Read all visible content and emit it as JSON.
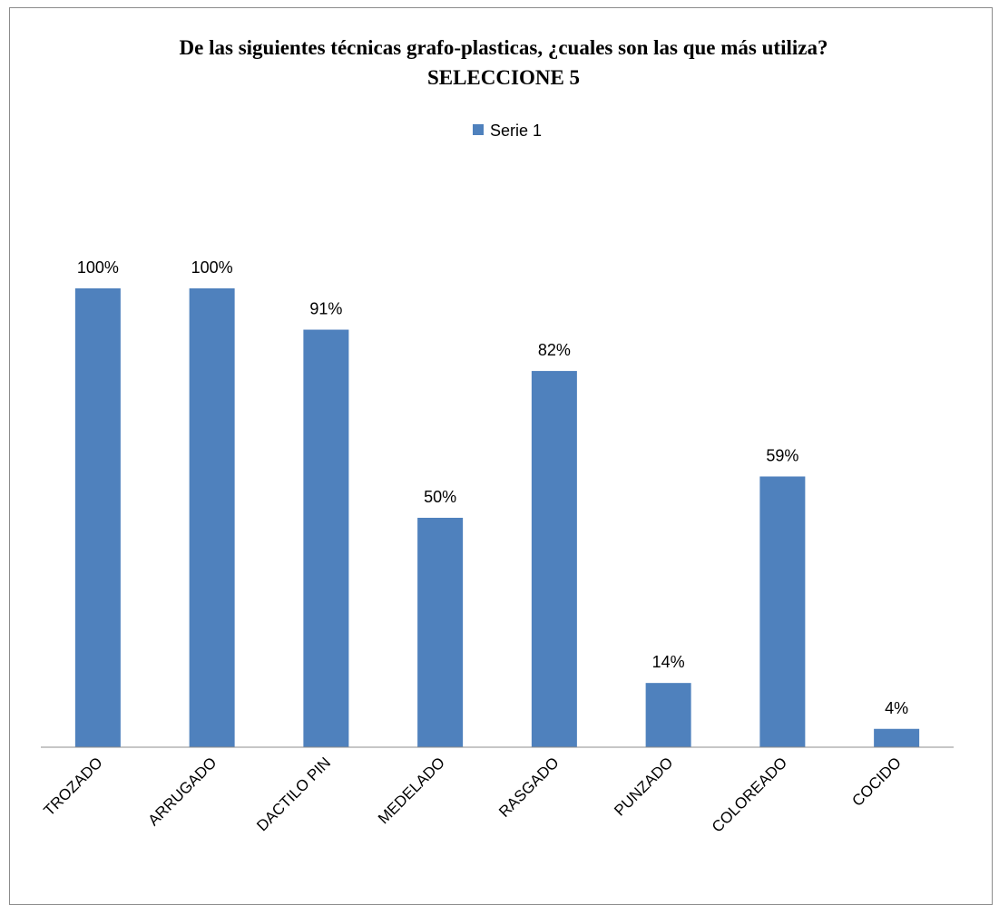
{
  "chart_data": {
    "type": "bar",
    "title": "De las siguientes técnicas grafo-plasticas, ¿cuales son las que más utiliza? SELECCIONE 5",
    "categories": [
      "TROZADO",
      "ARRUGADO",
      "DACTILO PIN",
      "MEDELADO",
      "RASGADO",
      "PUNZADO",
      "COLOREADO",
      "COCIDO"
    ],
    "series": [
      {
        "name": "Serie 1",
        "color": "#4f81bd",
        "values": [
          100,
          100,
          91,
          50,
          82,
          14,
          59,
          4
        ],
        "value_labels": [
          "100%",
          "100%",
          "91%",
          "50%",
          "82%",
          "14%",
          "59%",
          "4%"
        ]
      }
    ],
    "ylim": [
      0,
      100
    ],
    "legend": "top"
  }
}
